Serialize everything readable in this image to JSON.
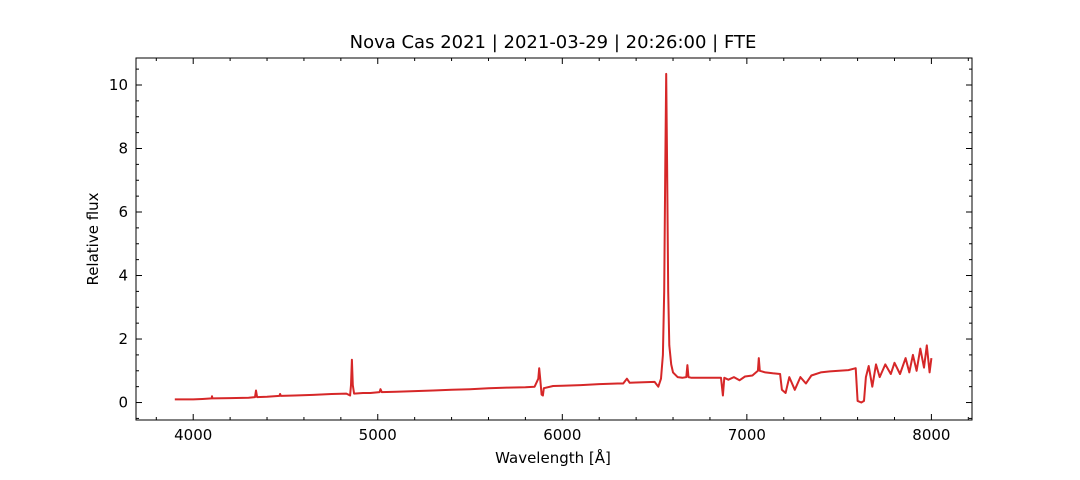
{
  "chart_data": {
    "type": "line",
    "title": "Nova Cas 2021 | 2021-03-29 | 20:26:00 | FTE",
    "xlabel": "Wavelength [Å]",
    "ylabel": "Relative flux",
    "xlim": [
      3690,
      8220
    ],
    "ylim": [
      -0.55,
      10.85
    ],
    "x_ticks": [
      4000,
      5000,
      6000,
      7000,
      8000
    ],
    "y_ticks": [
      0,
      2,
      4,
      6,
      8,
      10
    ],
    "x_minor_step": 200,
    "y_minor_step": 0.5,
    "ticks_direction": "in",
    "grid": false,
    "legend": "none",
    "series": [
      {
        "color": "#d62728",
        "points": [
          [
            3900,
            0.1
          ],
          [
            3950,
            0.1
          ],
          [
            4000,
            0.1
          ],
          [
            4050,
            0.11
          ],
          [
            4100,
            0.13
          ],
          [
            4102,
            0.2
          ],
          [
            4104,
            0.13
          ],
          [
            4200,
            0.14
          ],
          [
            4300,
            0.15
          ],
          [
            4335,
            0.17
          ],
          [
            4340,
            0.38
          ],
          [
            4346,
            0.17
          ],
          [
            4400,
            0.18
          ],
          [
            4467,
            0.21
          ],
          [
            4471,
            0.27
          ],
          [
            4475,
            0.21
          ],
          [
            4550,
            0.22
          ],
          [
            4650,
            0.24
          ],
          [
            4750,
            0.27
          ],
          [
            4830,
            0.28
          ],
          [
            4850,
            0.22
          ],
          [
            4855,
            0.55
          ],
          [
            4860,
            1.35
          ],
          [
            4865,
            0.55
          ],
          [
            4872,
            0.28
          ],
          [
            4920,
            0.3
          ],
          [
            4960,
            0.3
          ],
          [
            5010,
            0.33
          ],
          [
            5015,
            0.42
          ],
          [
            5022,
            0.33
          ],
          [
            5100,
            0.34
          ],
          [
            5200,
            0.36
          ],
          [
            5300,
            0.38
          ],
          [
            5400,
            0.4
          ],
          [
            5500,
            0.42
          ],
          [
            5600,
            0.45
          ],
          [
            5700,
            0.47
          ],
          [
            5800,
            0.48
          ],
          [
            5850,
            0.5
          ],
          [
            5870,
            0.75
          ],
          [
            5875,
            1.08
          ],
          [
            5880,
            0.75
          ],
          [
            5888,
            0.25
          ],
          [
            5895,
            0.22
          ],
          [
            5900,
            0.45
          ],
          [
            5950,
            0.52
          ],
          [
            6000,
            0.53
          ],
          [
            6100,
            0.55
          ],
          [
            6200,
            0.58
          ],
          [
            6300,
            0.6
          ],
          [
            6330,
            0.6
          ],
          [
            6350,
            0.75
          ],
          [
            6365,
            0.62
          ],
          [
            6400,
            0.63
          ],
          [
            6500,
            0.65
          ],
          [
            6520,
            0.5
          ],
          [
            6535,
            0.75
          ],
          [
            6545,
            1.5
          ],
          [
            6552,
            3.5
          ],
          [
            6558,
            7.5
          ],
          [
            6563,
            10.35
          ],
          [
            6568,
            7.5
          ],
          [
            6574,
            3.5
          ],
          [
            6580,
            1.8
          ],
          [
            6590,
            1.2
          ],
          [
            6600,
            0.95
          ],
          [
            6625,
            0.8
          ],
          [
            6650,
            0.78
          ],
          [
            6672,
            0.8
          ],
          [
            6678,
            1.18
          ],
          [
            6684,
            0.8
          ],
          [
            6700,
            0.78
          ],
          [
            6800,
            0.78
          ],
          [
            6860,
            0.78
          ],
          [
            6870,
            0.22
          ],
          [
            6878,
            0.78
          ],
          [
            6900,
            0.72
          ],
          [
            6930,
            0.8
          ],
          [
            6960,
            0.7
          ],
          [
            6990,
            0.82
          ],
          [
            7030,
            0.85
          ],
          [
            7060,
            1.0
          ],
          [
            7065,
            1.4
          ],
          [
            7070,
            1.0
          ],
          [
            7100,
            0.95
          ],
          [
            7140,
            0.92
          ],
          [
            7180,
            0.9
          ],
          [
            7190,
            0.4
          ],
          [
            7210,
            0.3
          ],
          [
            7230,
            0.8
          ],
          [
            7260,
            0.4
          ],
          [
            7290,
            0.8
          ],
          [
            7320,
            0.6
          ],
          [
            7350,
            0.85
          ],
          [
            7400,
            0.95
          ],
          [
            7450,
            0.98
          ],
          [
            7500,
            1.0
          ],
          [
            7550,
            1.02
          ],
          [
            7590,
            1.08
          ],
          [
            7600,
            0.05
          ],
          [
            7620,
            0.0
          ],
          [
            7635,
            0.05
          ],
          [
            7645,
            0.8
          ],
          [
            7660,
            1.15
          ],
          [
            7680,
            0.5
          ],
          [
            7700,
            1.2
          ],
          [
            7720,
            0.8
          ],
          [
            7750,
            1.2
          ],
          [
            7780,
            0.9
          ],
          [
            7800,
            1.25
          ],
          [
            7830,
            0.9
          ],
          [
            7860,
            1.4
          ],
          [
            7880,
            0.95
          ],
          [
            7900,
            1.5
          ],
          [
            7920,
            1.0
          ],
          [
            7940,
            1.7
          ],
          [
            7960,
            1.1
          ],
          [
            7975,
            1.8
          ],
          [
            7990,
            0.95
          ],
          [
            8000,
            1.4
          ]
        ]
      }
    ]
  }
}
